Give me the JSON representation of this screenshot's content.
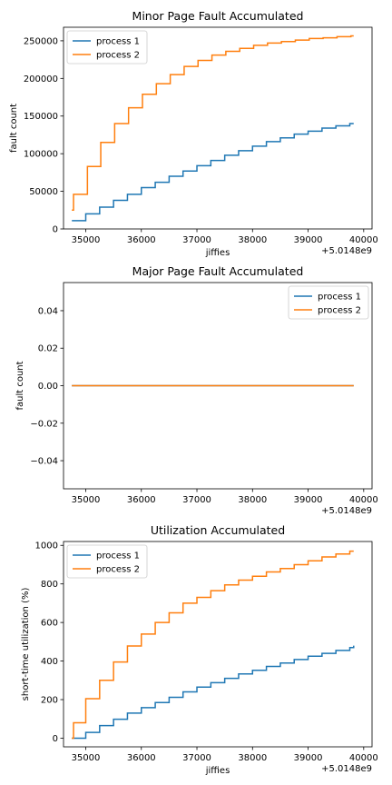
{
  "chart_data": [
    {
      "type": "line",
      "title": "Minor Page Fault Accumulated",
      "xlabel": "jiffies",
      "ylabel": "fault count",
      "x_offset_label": "+5.0148e9",
      "xlim": [
        34600,
        40150
      ],
      "ylim": [
        0,
        268000
      ],
      "x_ticks": [
        35000,
        36000,
        37000,
        38000,
        39000,
        40000
      ],
      "y_ticks": [
        0,
        50000,
        100000,
        150000,
        200000,
        250000
      ],
      "y_tick_labels": [
        "0",
        "50000",
        "100000",
        "150000",
        "200000",
        "250000"
      ],
      "legend_position": "top-left",
      "step": true,
      "series": [
        {
          "name": "process 1",
          "color": "#1f77b4",
          "x": [
            34750,
            35000,
            35250,
            35500,
            35750,
            36000,
            36250,
            36500,
            36750,
            37000,
            37250,
            37500,
            37750,
            38000,
            38250,
            38500,
            38750,
            39000,
            39250,
            39500,
            39750,
            39820
          ],
          "y": [
            11000,
            20000,
            29000,
            38000,
            46000,
            55000,
            62000,
            70000,
            77000,
            84000,
            91000,
            98000,
            104000,
            110000,
            116000,
            121000,
            126000,
            130000,
            134000,
            137000,
            140000,
            140000
          ]
        },
        {
          "name": "process 2",
          "color": "#ff7f0e",
          "x": [
            34750,
            34780,
            35030,
            35270,
            35520,
            35770,
            36020,
            36270,
            36520,
            36770,
            37020,
            37270,
            37520,
            37770,
            38020,
            38270,
            38520,
            38770,
            39020,
            39270,
            39520,
            39770,
            39820
          ],
          "y": [
            25000,
            46000,
            83000,
            115000,
            140000,
            161000,
            179000,
            193000,
            205000,
            216000,
            224000,
            231000,
            236000,
            240000,
            244000,
            247000,
            249000,
            251000,
            253000,
            254000,
            255500,
            256500,
            256500
          ]
        }
      ]
    },
    {
      "type": "line",
      "title": "Major Page Fault Accumulated",
      "xlabel": "",
      "ylabel": "fault count",
      "x_offset_label": "+5.0148e9",
      "xlim": [
        34600,
        40150
      ],
      "ylim": [
        -0.055,
        0.055
      ],
      "x_ticks": [
        35000,
        36000,
        37000,
        38000,
        39000,
        40000
      ],
      "y_ticks": [
        -0.04,
        -0.02,
        0.0,
        0.02,
        0.04
      ],
      "y_tick_labels": [
        "−0.04",
        "−0.02",
        "0.00",
        "0.02",
        "0.04"
      ],
      "legend_position": "top-right",
      "step": false,
      "series": [
        {
          "name": "process 1",
          "color": "#1f77b4",
          "x": [
            34750,
            39820
          ],
          "y": [
            0,
            0
          ]
        },
        {
          "name": "process 2",
          "color": "#ff7f0e",
          "x": [
            34750,
            39820
          ],
          "y": [
            0,
            0
          ]
        }
      ]
    },
    {
      "type": "line",
      "title": "Utilization Accumulated",
      "xlabel": "jiffies",
      "ylabel": "short-time utilization (%)",
      "x_offset_label": "+5.0148e9",
      "xlim": [
        34600,
        40150
      ],
      "ylim": [
        -45,
        1020
      ],
      "x_ticks": [
        35000,
        36000,
        37000,
        38000,
        39000,
        40000
      ],
      "y_ticks": [
        0,
        200,
        400,
        600,
        800,
        1000
      ],
      "y_tick_labels": [
        "0",
        "200",
        "400",
        "600",
        "800",
        "1000"
      ],
      "legend_position": "top-left",
      "step": true,
      "series": [
        {
          "name": "process 1",
          "color": "#1f77b4",
          "x": [
            34750,
            35000,
            35250,
            35500,
            35750,
            36000,
            36250,
            36500,
            36750,
            37000,
            37250,
            37500,
            37750,
            38000,
            38250,
            38500,
            38750,
            39000,
            39250,
            39500,
            39750,
            39820
          ],
          "y": [
            0,
            30,
            65,
            98,
            130,
            158,
            185,
            212,
            240,
            265,
            288,
            310,
            333,
            352,
            372,
            390,
            408,
            425,
            440,
            455,
            470,
            480
          ]
        },
        {
          "name": "process 2",
          "color": "#ff7f0e",
          "x": [
            34750,
            34780,
            35000,
            35250,
            35500,
            35750,
            36000,
            36250,
            36500,
            36750,
            37000,
            37250,
            37500,
            37750,
            38000,
            38250,
            38500,
            38750,
            39000,
            39250,
            39500,
            39750,
            39820
          ],
          "y": [
            0,
            80,
            205,
            300,
            395,
            478,
            540,
            600,
            650,
            700,
            730,
            765,
            795,
            820,
            840,
            862,
            880,
            900,
            920,
            940,
            955,
            970,
            970
          ]
        }
      ]
    }
  ]
}
